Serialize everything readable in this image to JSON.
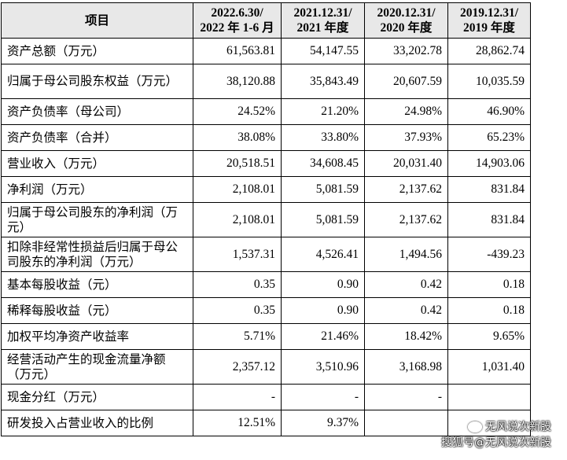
{
  "table": {
    "headers": [
      {
        "line1": "项目",
        "line2": ""
      },
      {
        "line1": "2022.6.30/",
        "line2": "2022 年 1-6 月"
      },
      {
        "line1": "2021.12.31/",
        "line2": "2021 年度"
      },
      {
        "line1": "2020.12.31/",
        "line2": "2020 年度"
      },
      {
        "line1": "2019.12.31/",
        "line2": "2019 年度"
      }
    ],
    "rows": [
      {
        "label": "资产总额（万元）",
        "values": [
          "61,563.81",
          "54,147.55",
          "33,202.78",
          "28,862.74"
        ]
      },
      {
        "label": "归属于母公司股东权益（万元）",
        "values": [
          "38,120.88",
          "35,843.49",
          "20,607.59",
          "10,035.59"
        ]
      },
      {
        "label": "资产负债率（母公司）",
        "values": [
          "24.52%",
          "21.20%",
          "24.98%",
          "46.90%"
        ]
      },
      {
        "label": "资产负债率（合并）",
        "values": [
          "38.08%",
          "33.80%",
          "37.93%",
          "65.23%"
        ]
      },
      {
        "label": "营业收入（万元）",
        "values": [
          "20,518.51",
          "34,608.45",
          "20,031.40",
          "14,903.06"
        ]
      },
      {
        "label": "净利润（万元）",
        "values": [
          "2,108.01",
          "5,081.59",
          "2,137.62",
          "831.84"
        ]
      },
      {
        "label": "归属于母公司股东的净利润（万元）",
        "values": [
          "2,108.01",
          "5,081.59",
          "2,137.62",
          "831.84"
        ]
      },
      {
        "label": "扣除非经常性损益后归属于母公司股东的净利润（万元）",
        "values": [
          "1,537.31",
          "4,526.41",
          "1,494.56",
          "-439.23"
        ]
      },
      {
        "label": "基本每股收益（元）",
        "values": [
          "0.35",
          "0.90",
          "0.42",
          "0.18"
        ]
      },
      {
        "label": "稀释每股收益（元）",
        "values": [
          "0.35",
          "0.90",
          "0.42",
          "0.18"
        ]
      },
      {
        "label": "加权平均净资产收益率",
        "values": [
          "5.71%",
          "21.46%",
          "18.42%",
          "9.65%"
        ]
      },
      {
        "label": "经营活动产生的现金流量净额（万元）",
        "values": [
          "2,357.12",
          "3,510.96",
          "3,168.98",
          "1,031.40"
        ]
      },
      {
        "label": "现金分红（万元）",
        "values": [
          "-",
          "-",
          "-",
          ""
        ]
      },
      {
        "label": "研发投入占营业收入的比例",
        "values": [
          "12.51%",
          "9.37%",
          "",
          ""
        ]
      }
    ]
  },
  "watermark": {
    "line1": "无风说次新股",
    "line2": "搜狐号@无风说次新股"
  }
}
